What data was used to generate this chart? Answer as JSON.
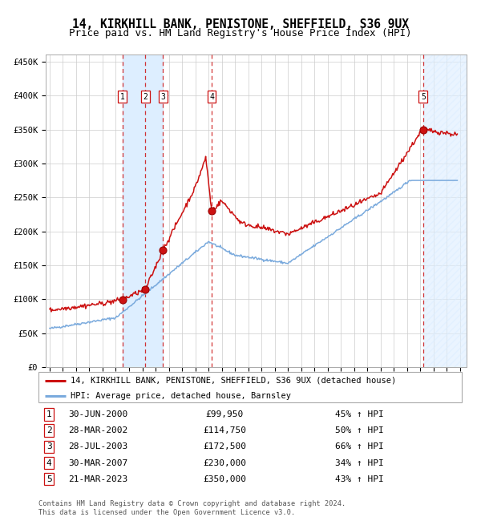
{
  "title": "14, KIRKHILL BANK, PENISTONE, SHEFFIELD, S36 9UX",
  "subtitle": "Price paid vs. HM Land Registry's House Price Index (HPI)",
  "ylim": [
    0,
    460000
  ],
  "xlim_start": 1994.7,
  "xlim_end": 2026.5,
  "yticks": [
    0,
    50000,
    100000,
    150000,
    200000,
    250000,
    300000,
    350000,
    400000,
    450000
  ],
  "ytick_labels": [
    "£0",
    "£50K",
    "£100K",
    "£150K",
    "£200K",
    "£250K",
    "£300K",
    "£350K",
    "£400K",
    "£450K"
  ],
  "sale_dates": [
    2000.49,
    2002.23,
    2003.57,
    2007.24,
    2023.22
  ],
  "sale_prices": [
    99950,
    114750,
    172500,
    230000,
    350000
  ],
  "sale_labels": [
    "1",
    "2",
    "3",
    "4",
    "5"
  ],
  "hpi_color": "#7aaadd",
  "price_color": "#cc1111",
  "shade_color": "#ddeeff",
  "legend_label_price": "14, KIRKHILL BANK, PENISTONE, SHEFFIELD, S36 9UX (detached house)",
  "legend_label_hpi": "HPI: Average price, detached house, Barnsley",
  "table_entries": [
    {
      "num": "1",
      "date": "30-JUN-2000",
      "price": "£99,950",
      "change": "45% ↑ HPI"
    },
    {
      "num": "2",
      "date": "28-MAR-2002",
      "price": "£114,750",
      "change": "50% ↑ HPI"
    },
    {
      "num": "3",
      "date": "28-JUL-2003",
      "price": "£172,500",
      "change": "66% ↑ HPI"
    },
    {
      "num": "4",
      "date": "30-MAR-2007",
      "price": "£230,000",
      "change": "34% ↑ HPI"
    },
    {
      "num": "5",
      "date": "21-MAR-2023",
      "price": "£350,000",
      "change": "43% ↑ HPI"
    }
  ],
  "footer": "Contains HM Land Registry data © Crown copyright and database right 2024.\nThis data is licensed under the Open Government Licence v3.0.",
  "background_color": "#ffffff",
  "grid_color": "#cccccc"
}
